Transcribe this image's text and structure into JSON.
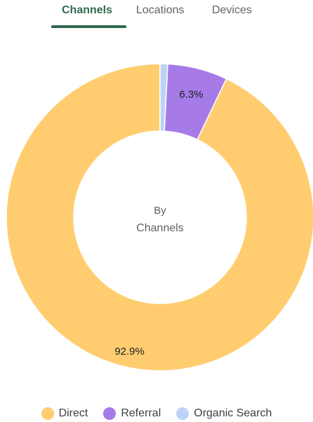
{
  "tabs": [
    {
      "label": "Channels",
      "active": true
    },
    {
      "label": "Locations",
      "active": false
    },
    {
      "label": "Devices",
      "active": false
    }
  ],
  "accent_color": "#2f6b4f",
  "chart_data": {
    "type": "pie",
    "subtype": "donut",
    "center_label": {
      "line1": "By",
      "line2": "Channels"
    },
    "categories": [
      "Direct",
      "Referral",
      "Organic Search"
    ],
    "values": [
      92.9,
      6.3,
      0.8
    ],
    "data_labels": [
      "92.9%",
      "6.3%",
      ""
    ],
    "colors": [
      "#ffcd70",
      "#a67be8",
      "#bcd3f5"
    ],
    "legend": "bottom"
  }
}
